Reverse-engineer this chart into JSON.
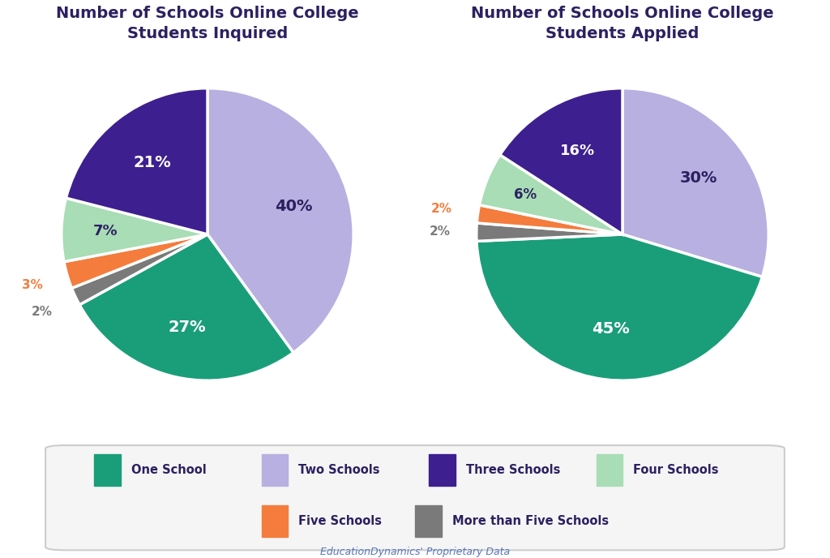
{
  "title1": "Number of Schools Online College\nStudents Inquired",
  "title2": "Number of Schools Online College\nStudents Applied",
  "pie1_values": [
    40,
    27,
    2,
    3,
    7,
    21
  ],
  "pie2_values": [
    30,
    45,
    2,
    2,
    6,
    16
  ],
  "pie1_colors": [
    "#b8b0e0",
    "#1a9e7a",
    "#7a7a7a",
    "#f47c3c",
    "#a8ddb5",
    "#3d1f8f"
  ],
  "pie2_colors": [
    "#b8b0e0",
    "#1a9e7a",
    "#7a7a7a",
    "#f47c3c",
    "#a8ddb5",
    "#3d1f8f"
  ],
  "pie1_pct_labels": [
    "40%",
    "27%",
    "2%",
    "3%",
    "7%",
    "21%"
  ],
  "pie2_pct_labels": [
    "30%",
    "45%",
    "2%",
    "2%",
    "6%",
    "16%"
  ],
  "pie1_label_radii": [
    0.62,
    0.65,
    1.25,
    1.25,
    0.7,
    0.62
  ],
  "pie2_label_radii": [
    0.65,
    0.65,
    1.25,
    1.25,
    0.72,
    0.65
  ],
  "pie1_label_colors": [
    "#2d2060",
    "#ffffff",
    "#7a7a7a",
    "#f47c3c",
    "#2d2060",
    "#ffffff"
  ],
  "pie2_label_colors": [
    "#2d2060",
    "#ffffff",
    "#7a7a7a",
    "#f47c3c",
    "#2d2060",
    "#ffffff"
  ],
  "pie1_label_fontsizes": [
    14,
    14,
    11,
    11,
    13,
    14
  ],
  "pie2_label_fontsizes": [
    14,
    14,
    11,
    11,
    12,
    13
  ],
  "legend_colors": [
    "#1a9e7a",
    "#b8b0e0",
    "#3d1f8f",
    "#a8ddb5",
    "#f47c3c",
    "#7a7a7a"
  ],
  "legend_labels": [
    "One School",
    "Two Schools",
    "Three Schools",
    "Four Schools",
    "Five Schools",
    "More than Five Schools"
  ],
  "title_color": "#2d2060",
  "bg_color": "#ffffff",
  "footer_text": "EducationDynamics' Proprietary Data",
  "footer_color": "#5577bb"
}
